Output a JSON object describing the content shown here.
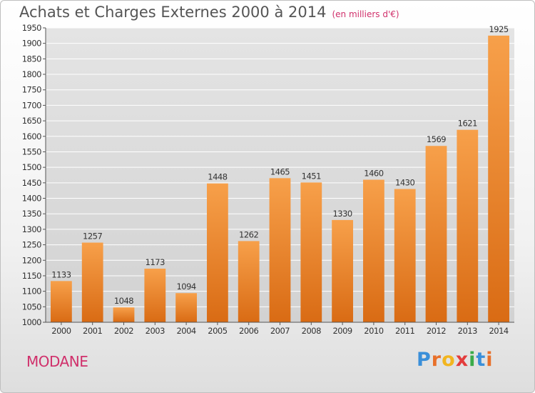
{
  "title": "Achats et Charges Externes 2000 à 2014",
  "subtitle": "(en milliers d'€)",
  "city": "MODANE",
  "logo": {
    "letters": [
      "P",
      "r",
      "o",
      "x",
      "i",
      "t",
      "i"
    ],
    "colors": [
      "#3a8fd9",
      "#e8702a",
      "#f2b51f",
      "#e33c3c",
      "#3aab4a",
      "#3a8fd9",
      "#e8702a"
    ]
  },
  "chart_data": {
    "type": "bar",
    "categories": [
      "2000",
      "2001",
      "2002",
      "2003",
      "2004",
      "2005",
      "2006",
      "2007",
      "2008",
      "2009",
      "2010",
      "2011",
      "2012",
      "2013",
      "2014"
    ],
    "values": [
      1133,
      1257,
      1048,
      1173,
      1094,
      1448,
      1262,
      1465,
      1451,
      1330,
      1460,
      1430,
      1569,
      1621,
      1925
    ],
    "ylim": [
      1000,
      1950
    ],
    "ytick_step": 50,
    "grid": true,
    "bar_colors": [
      "#f7a04a",
      "#d96b14"
    ]
  }
}
